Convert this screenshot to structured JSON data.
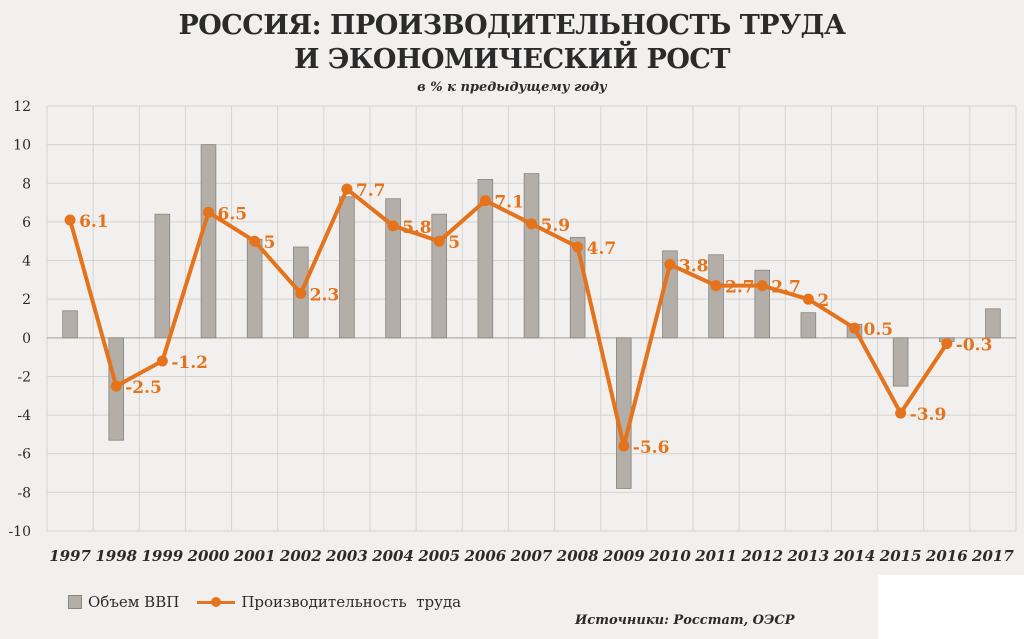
{
  "chart_data": {
    "type": "bar+line",
    "title_line1": "РОССИЯ: ПРОИЗВОДИТЕЛЬНОСТЬ ТРУДА",
    "title_line2": "И ЭКОНОМИЧЕСКИЙ РОСТ",
    "subtitle": "в % к предыдущему году",
    "categories": [
      "1997",
      "1998",
      "1999",
      "2000",
      "2001",
      "2002",
      "2003",
      "2004",
      "2005",
      "2006",
      "2007",
      "2008",
      "2009",
      "2010",
      "2011",
      "2012",
      "2013",
      "2014",
      "2015",
      "2016",
      "2017"
    ],
    "series": [
      {
        "name": "Объем ВВП",
        "kind": "bar",
        "color": "#b3aea7",
        "values": [
          1.4,
          -5.3,
          6.4,
          10.0,
          5.1,
          4.7,
          7.3,
          7.2,
          6.4,
          8.2,
          8.5,
          5.2,
          -7.8,
          4.5,
          4.3,
          3.5,
          1.3,
          0.7,
          -2.5,
          -0.2,
          1.5
        ]
      },
      {
        "name": "Производительность  труда",
        "kind": "line",
        "color": "#e5731c",
        "values": [
          6.1,
          -2.5,
          -1.2,
          6.5,
          5,
          2.3,
          7.7,
          5.8,
          5,
          7.1,
          5.9,
          4.7,
          -5.6,
          3.8,
          2.7,
          2.7,
          2,
          0.5,
          -3.9,
          -0.3,
          null
        ],
        "labels": [
          "6.1",
          "-2.5",
          "-1.2",
          "6.5",
          "5",
          "2.3",
          "7.7",
          "5.8",
          "5",
          "7.1",
          "5.9",
          "4.7",
          "-5.6",
          "3.8",
          "2.7",
          "2.7",
          "2",
          "0.5",
          "-3.9",
          "-0.3",
          ""
        ]
      }
    ],
    "ylim": [
      -10,
      12
    ],
    "yticks": [
      12,
      10,
      8,
      6,
      4,
      2,
      0,
      -2,
      -4,
      -6,
      -8,
      -10
    ],
    "grid": true,
    "legend": "bottom-left",
    "source": "Источники: Росстат, ОЭСР"
  }
}
